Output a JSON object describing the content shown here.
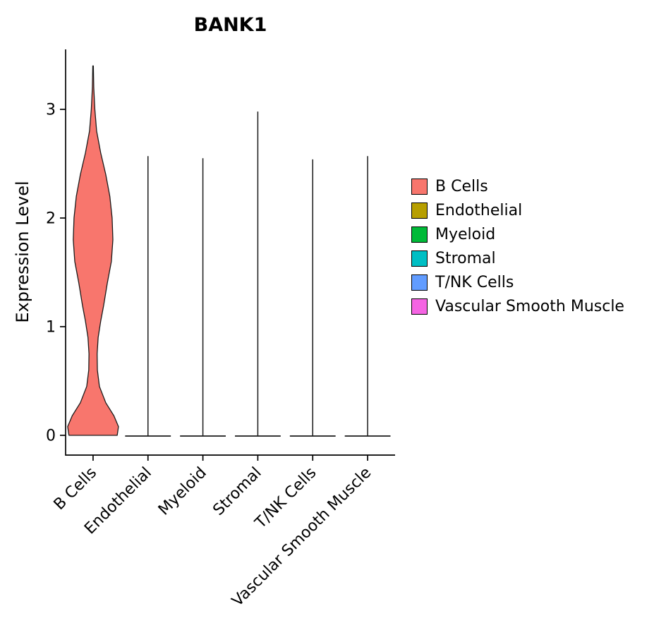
{
  "chart_data": {
    "type": "violin",
    "title": "BANK1",
    "xlabel": "",
    "ylabel": "Expression Level",
    "ylim": [
      0,
      3.45
    ],
    "yticks": [
      0,
      1,
      2,
      3
    ],
    "grid": false,
    "legend_position": "right",
    "categories": [
      "B Cells",
      "Endothelial",
      "Myeloid",
      "Stromal",
      "T/NK Cells",
      "Vascular Smooth Muscle"
    ],
    "legend": {
      "items": [
        {
          "label": "B Cells",
          "color": "#F8766D"
        },
        {
          "label": "Endothelial",
          "color": "#B79F00"
        },
        {
          "label": "Myeloid",
          "color": "#00BA38"
        },
        {
          "label": "Stromal",
          "color": "#00BFC4"
        },
        {
          "label": "T/NK Cells",
          "color": "#619CFF"
        },
        {
          "label": "Vascular Smooth Muscle",
          "color": "#F564E3"
        }
      ]
    },
    "violins": [
      {
        "category": "B Cells",
        "color": "#F8766D",
        "max_expression": 3.4,
        "profile": [
          [
            0.0,
            0.95
          ],
          [
            0.08,
            1.0
          ],
          [
            0.18,
            0.82
          ],
          [
            0.3,
            0.5
          ],
          [
            0.45,
            0.25
          ],
          [
            0.6,
            0.17
          ],
          [
            0.75,
            0.16
          ],
          [
            0.9,
            0.2
          ],
          [
            1.05,
            0.3
          ],
          [
            1.2,
            0.42
          ],
          [
            1.4,
            0.56
          ],
          [
            1.6,
            0.72
          ],
          [
            1.8,
            0.78
          ],
          [
            2.0,
            0.75
          ],
          [
            2.2,
            0.66
          ],
          [
            2.4,
            0.5
          ],
          [
            2.6,
            0.3
          ],
          [
            2.8,
            0.14
          ],
          [
            3.0,
            0.07
          ],
          [
            3.2,
            0.028
          ],
          [
            3.4,
            0.012
          ]
        ]
      },
      {
        "category": "Endothelial",
        "color": "#B79F00",
        "max_expression": 2.57,
        "spike": true,
        "base_halfwidth": 0.9
      },
      {
        "category": "Myeloid",
        "color": "#00BA38",
        "max_expression": 2.55,
        "spike": true,
        "base_halfwidth": 0.9
      },
      {
        "category": "Stromal",
        "color": "#00BFC4",
        "max_expression": 2.98,
        "spike": true,
        "base_halfwidth": 0.9
      },
      {
        "category": "T/NK Cells",
        "color": "#619CFF",
        "max_expression": 2.54,
        "spike": true,
        "base_halfwidth": 0.9
      },
      {
        "category": "Vascular Smooth Muscle",
        "color": "#F564E3",
        "max_expression": 2.57,
        "spike": true,
        "base_halfwidth": 0.9
      }
    ]
  }
}
